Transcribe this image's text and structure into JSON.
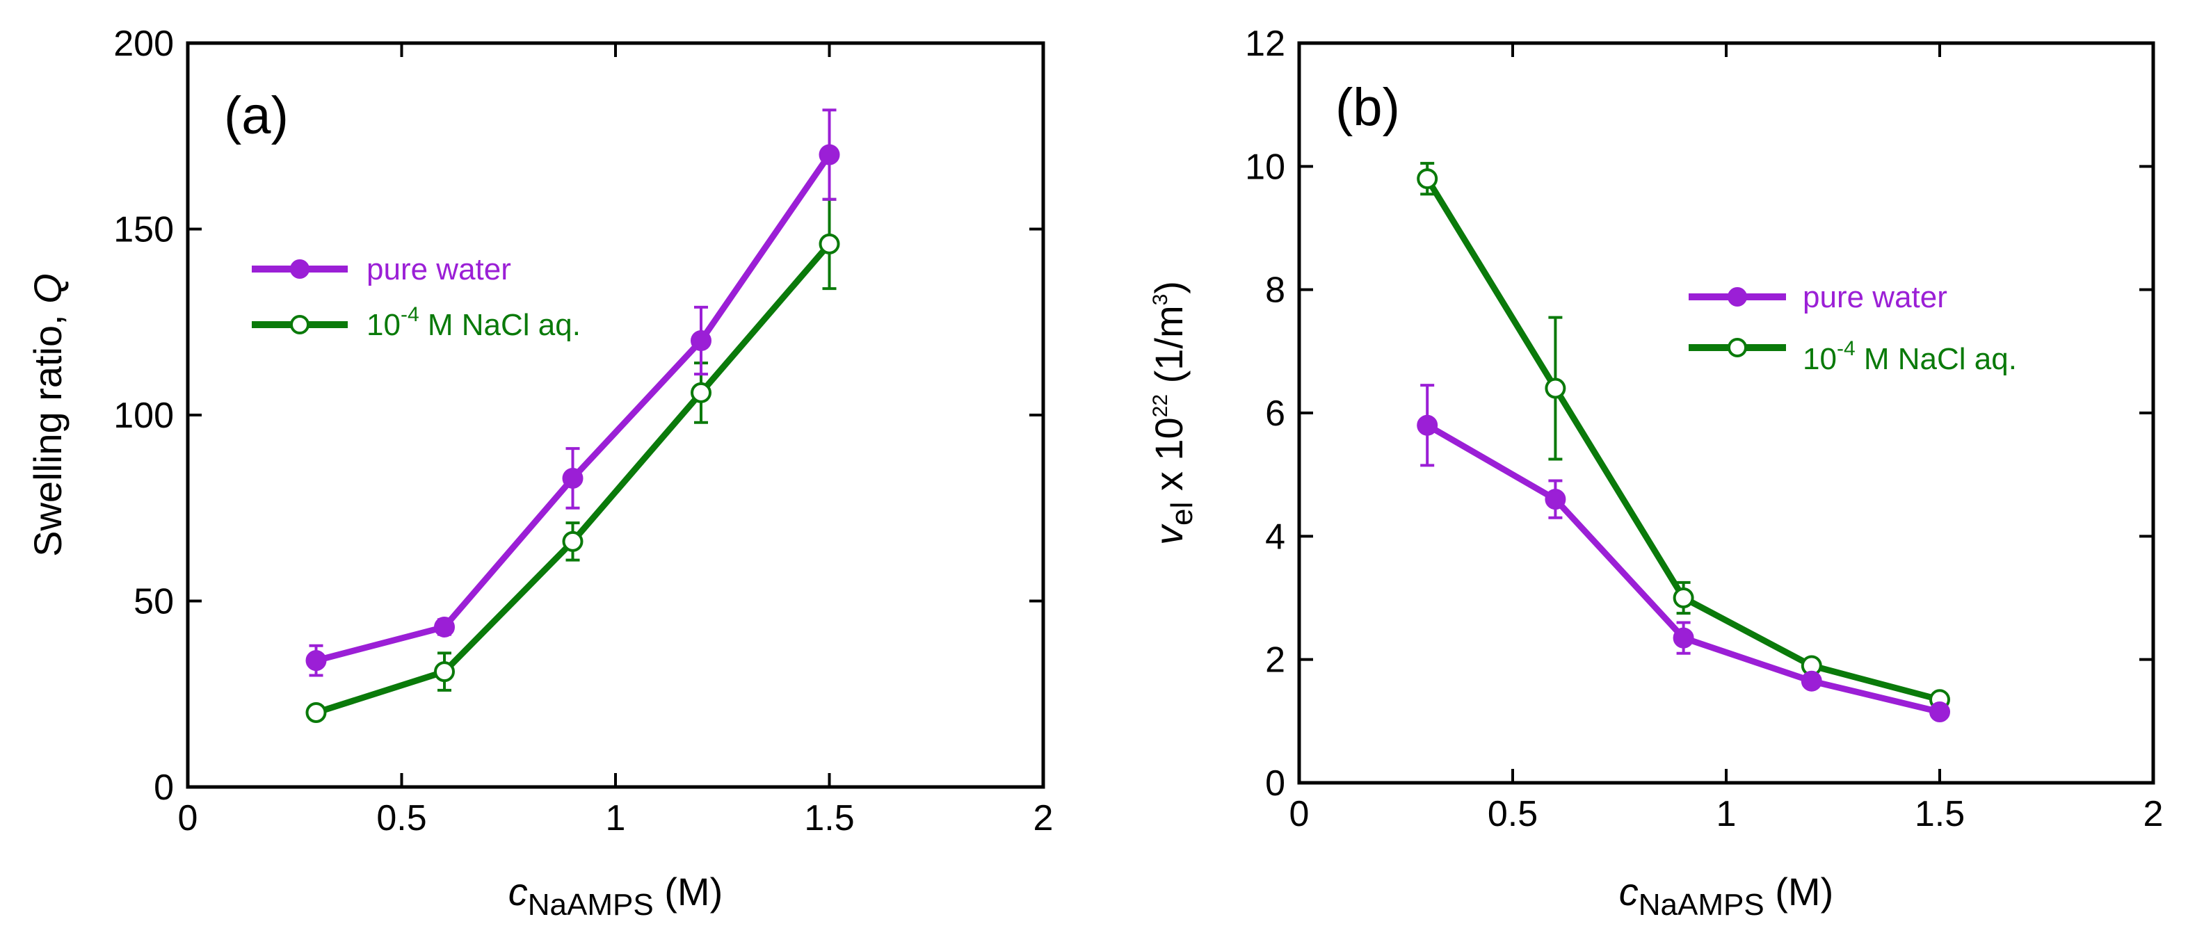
{
  "chart_data": [
    {
      "type": "line",
      "panel_label": "(a)",
      "title": "",
      "xlabel": "c",
      "xlabel_subscript": "NaAMPS",
      "xlabel_unit": " (M)",
      "ylabel": "Swelling ratio, ",
      "ylabel_italic": "Q",
      "xlim": [
        0,
        2
      ],
      "ylim": [
        0,
        200
      ],
      "x_ticks": [
        "0",
        "0.5",
        "1",
        "1.5",
        "2"
      ],
      "y_ticks": [
        "0",
        "50",
        "100",
        "150",
        "200"
      ],
      "legend_position": "upper-left",
      "series": [
        {
          "name": "pure water",
          "marker": "filled-circle",
          "color": "#9b1fd6",
          "x": [
            0.3,
            0.6,
            0.9,
            1.2,
            1.5
          ],
          "y": [
            34,
            43,
            83,
            120,
            170
          ],
          "err": [
            4,
            2,
            8,
            9,
            12
          ]
        },
        {
          "name": "10",
          "name_superscript": "-4",
          "name_suffix": " M NaCl aq.",
          "marker": "open-circle",
          "color": "#0a7a0a",
          "x": [
            0.3,
            0.6,
            0.9,
            1.2,
            1.5
          ],
          "y": [
            20,
            31,
            66,
            106,
            146
          ],
          "err": [
            1,
            5,
            5,
            8,
            12
          ]
        }
      ]
    },
    {
      "type": "line",
      "panel_label": "(b)",
      "title": "",
      "xlabel": "c",
      "xlabel_subscript": "NaAMPS",
      "xlabel_unit": " (M)",
      "ylabel": "v",
      "ylabel_subscript": "el",
      "ylabel_mid": " x 10",
      "ylabel_superscript": "22",
      "ylabel_unit": " (1/m",
      "ylabel_unit_superscript": "3",
      "ylabel_unit_end": ")",
      "xlim": [
        0,
        2
      ],
      "ylim": [
        0,
        12
      ],
      "x_ticks": [
        "0",
        "0.5",
        "1",
        "1.5",
        "2"
      ],
      "y_ticks": [
        "0",
        "2",
        "4",
        "6",
        "8",
        "10",
        "12"
      ],
      "legend_position": "center-right",
      "series": [
        {
          "name": "pure water",
          "marker": "filled-circle",
          "color": "#9b1fd6",
          "x": [
            0.3,
            0.6,
            0.9,
            1.2,
            1.5
          ],
          "y": [
            5.8,
            4.6,
            2.35,
            1.65,
            1.15
          ],
          "err": [
            0.65,
            0.3,
            0.25,
            0.1,
            0.05
          ]
        },
        {
          "name": "10",
          "name_superscript": "-4",
          "name_suffix": " M NaCl aq.",
          "marker": "open-circle",
          "color": "#0a7a0a",
          "x": [
            0.3,
            0.6,
            0.9,
            1.2,
            1.5
          ],
          "y": [
            9.8,
            6.4,
            3.0,
            1.9,
            1.35
          ],
          "err": [
            0.25,
            1.15,
            0.25,
            0.1,
            0.05
          ]
        }
      ]
    }
  ]
}
